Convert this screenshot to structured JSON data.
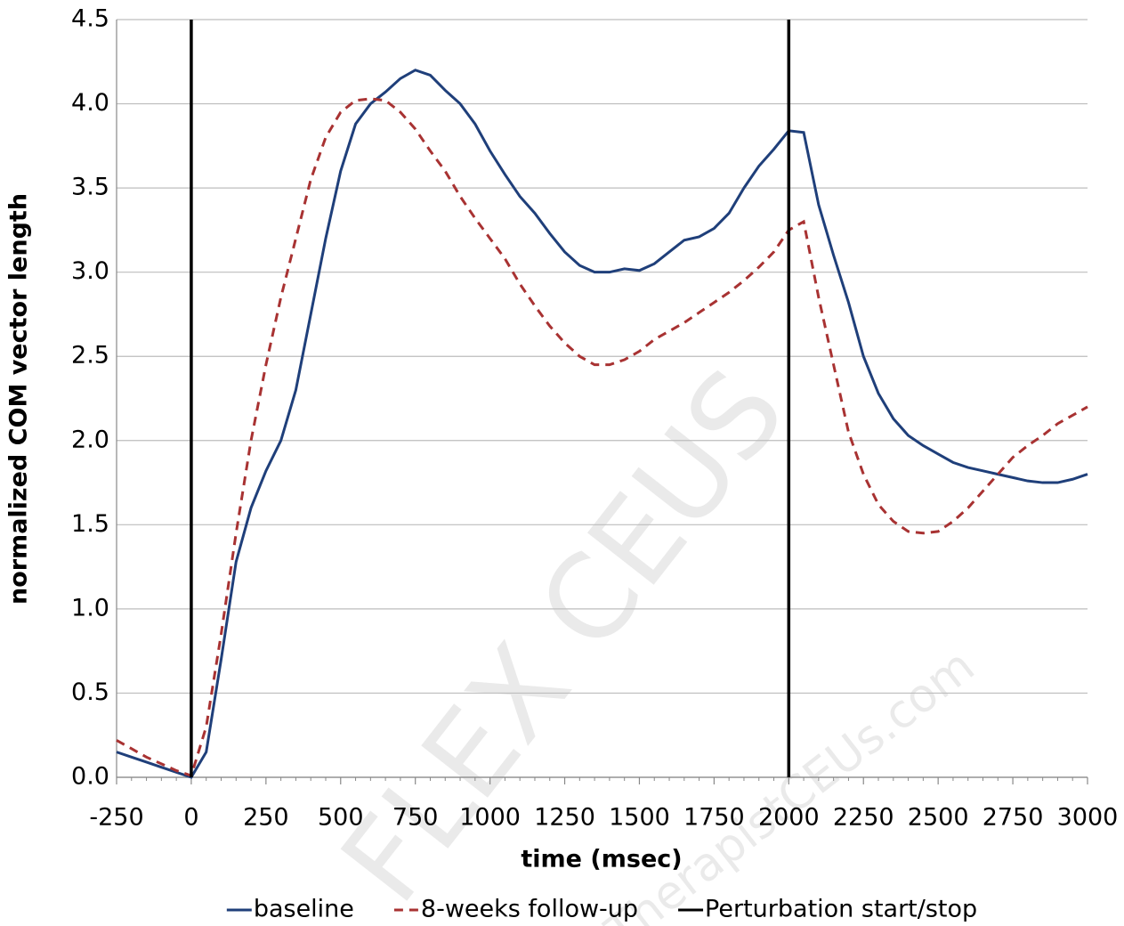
{
  "chart_data": {
    "type": "line",
    "xlabel": "time (msec)",
    "ylabel": "normalized COM vector length",
    "x": [
      -250,
      -200,
      -150,
      -100,
      -50,
      0,
      50,
      100,
      150,
      200,
      250,
      300,
      350,
      400,
      450,
      500,
      550,
      600,
      650,
      700,
      750,
      800,
      850,
      900,
      950,
      1000,
      1050,
      1100,
      1150,
      1200,
      1250,
      1300,
      1350,
      1400,
      1450,
      1500,
      1550,
      1600,
      1650,
      1700,
      1750,
      1800,
      1850,
      1900,
      1950,
      2000,
      2050,
      2100,
      2150,
      2200,
      2250,
      2300,
      2350,
      2400,
      2450,
      2500,
      2550,
      2600,
      2650,
      2700,
      2750,
      2800,
      2850,
      2900,
      2950,
      3000
    ],
    "series": [
      {
        "name": "baseline",
        "color": "#1f3f7a",
        "dash": false,
        "values": [
          0.15,
          0.12,
          0.09,
          0.06,
          0.03,
          0.0,
          0.15,
          0.7,
          1.28,
          1.6,
          1.82,
          2.0,
          2.3,
          2.75,
          3.2,
          3.6,
          3.88,
          4.0,
          4.07,
          4.15,
          4.2,
          4.17,
          4.08,
          4.0,
          3.88,
          3.72,
          3.58,
          3.45,
          3.35,
          3.23,
          3.12,
          3.04,
          3.0,
          3.0,
          3.02,
          3.01,
          3.05,
          3.12,
          3.19,
          3.21,
          3.26,
          3.35,
          3.5,
          3.63,
          3.73,
          3.84,
          3.83,
          3.4,
          3.1,
          2.82,
          2.5,
          2.28,
          2.13,
          2.03,
          1.97,
          1.92,
          1.87,
          1.84,
          1.82,
          1.8,
          1.78,
          1.76,
          1.75,
          1.75,
          1.77,
          1.8
        ]
      },
      {
        "name": "8-weeks follow-up",
        "color": "#a83232",
        "dash": true,
        "values": [
          0.22,
          0.17,
          0.12,
          0.08,
          0.04,
          0.01,
          0.3,
          0.85,
          1.45,
          2.0,
          2.45,
          2.85,
          3.2,
          3.55,
          3.8,
          3.95,
          4.02,
          4.03,
          4.02,
          3.95,
          3.85,
          3.72,
          3.6,
          3.45,
          3.32,
          3.2,
          3.08,
          2.93,
          2.8,
          2.68,
          2.58,
          2.5,
          2.45,
          2.45,
          2.48,
          2.53,
          2.6,
          2.65,
          2.7,
          2.76,
          2.82,
          2.88,
          2.95,
          3.03,
          3.12,
          3.25,
          3.3,
          2.85,
          2.45,
          2.05,
          1.8,
          1.62,
          1.52,
          1.46,
          1.45,
          1.46,
          1.52,
          1.6,
          1.7,
          1.8,
          1.9,
          1.97,
          2.03,
          2.1,
          2.15,
          2.2
        ]
      }
    ],
    "vertical_lines": {
      "name": "Perturbation start/stop",
      "color": "#000000",
      "x": [
        0,
        2000
      ]
    },
    "xlim": [
      -250,
      3000
    ],
    "xticks": [
      -250,
      0,
      250,
      500,
      750,
      1000,
      1250,
      1500,
      1750,
      2000,
      2250,
      2500,
      2750,
      3000
    ],
    "ylim": [
      0,
      4.5
    ],
    "yticks": [
      {
        "value": 0,
        "label": "0.0"
      },
      {
        "value": 0.5,
        "label": "0.5"
      },
      {
        "value": 1,
        "label": "1.0"
      },
      {
        "value": 1.5,
        "label": "1.5"
      },
      {
        "value": 2,
        "label": "2.0"
      },
      {
        "value": 2.5,
        "label": "2.5"
      },
      {
        "value": 3,
        "label": "3.0"
      },
      {
        "value": 3.5,
        "label": "3.5"
      },
      {
        "value": 4,
        "label": "4.0"
      },
      {
        "value": 4.5,
        "label": "4.5"
      }
    ],
    "grid": true,
    "legend": "bottom",
    "watermark": [
      "FLEX CEUS",
      "TherapistCEUs.com"
    ]
  }
}
